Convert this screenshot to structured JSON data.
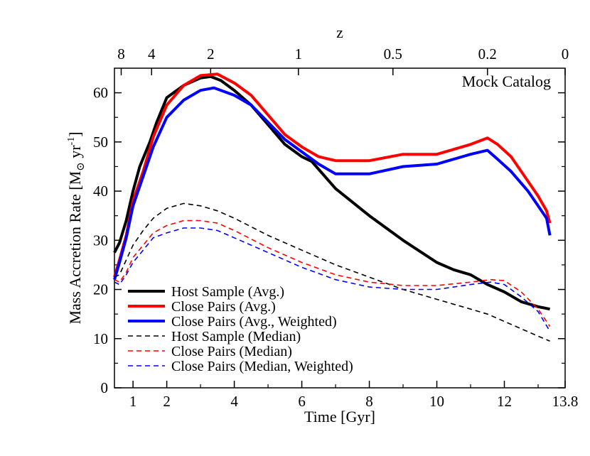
{
  "chart_data": {
    "type": "line",
    "annotation": "Mock Catalog",
    "xlabel": "Time [Gyr]",
    "ylabel": {
      "base": "Mass Accretion Rate [M",
      "sun": "⊙",
      "mid": " yr",
      "exp": "-1",
      "end": "]"
    },
    "top_xlabel": "z",
    "xlim": [
      0.45,
      13.8
    ],
    "ylim": [
      0,
      65
    ],
    "x_ticks": [
      {
        "value": 1,
        "label": "1"
      },
      {
        "value": 2,
        "label": "2"
      },
      {
        "value": 4,
        "label": "4"
      },
      {
        "value": 6,
        "label": "6"
      },
      {
        "value": 8,
        "label": "8"
      },
      {
        "value": 10,
        "label": "10"
      },
      {
        "value": 12,
        "label": "12"
      },
      {
        "value": 13.8,
        "label": "13.8"
      }
    ],
    "y_ticks": [
      {
        "value": 0,
        "label": "0"
      },
      {
        "value": 10,
        "label": "10"
      },
      {
        "value": 20,
        "label": "20"
      },
      {
        "value": 30,
        "label": "30"
      },
      {
        "value": 40,
        "label": "40"
      },
      {
        "value": 50,
        "label": "50"
      },
      {
        "value": 60,
        "label": "60"
      }
    ],
    "top_ticks": [
      {
        "time": 0.65,
        "label": "8"
      },
      {
        "time": 1.55,
        "label": "4"
      },
      {
        "time": 3.3,
        "label": "2"
      },
      {
        "time": 5.9,
        "label": "1"
      },
      {
        "time": 8.7,
        "label": "0.5"
      },
      {
        "time": 11.5,
        "label": "0.2"
      },
      {
        "time": 13.8,
        "label": "0"
      }
    ],
    "series": [
      {
        "name": "Host Sample (Avg.)",
        "color": "#000000",
        "dash": "solid",
        "x": [
          0.45,
          0.6,
          0.8,
          1.0,
          1.2,
          1.5,
          1.7,
          2.0,
          2.5,
          3.0,
          3.3,
          3.6,
          4.0,
          4.5,
          5.0,
          5.5,
          6.0,
          6.3,
          7.0,
          8.0,
          9.0,
          10.0,
          10.5,
          11.0,
          11.5,
          12.0,
          12.5,
          13.0,
          13.35
        ],
        "values": [
          27.5,
          29.5,
          34.0,
          40.0,
          45.0,
          50.0,
          54.0,
          59.0,
          61.5,
          63.0,
          63.3,
          62.5,
          60.5,
          57.5,
          53.5,
          49.5,
          47.0,
          46.0,
          40.5,
          35.0,
          30.0,
          25.5,
          24.0,
          23.0,
          21.0,
          19.5,
          17.5,
          16.5,
          16.0
        ]
      },
      {
        "name": "Close Pairs (Avg.)",
        "color": "#ff0000",
        "dash": "solid",
        "x": [
          0.45,
          0.6,
          0.8,
          1.0,
          1.3,
          1.6,
          2.0,
          2.5,
          3.0,
          3.5,
          4.0,
          4.5,
          5.0,
          5.5,
          6.0,
          6.5,
          7.0,
          8.0,
          9.0,
          10.0,
          11.0,
          11.5,
          11.8,
          12.2,
          12.7,
          13.0,
          13.25,
          13.35
        ],
        "values": [
          22.5,
          26.0,
          31.0,
          38.0,
          44.0,
          51.0,
          57.5,
          61.5,
          63.5,
          63.8,
          62.0,
          59.5,
          55.5,
          51.5,
          49.0,
          47.0,
          46.2,
          46.2,
          47.5,
          47.5,
          49.5,
          50.8,
          49.5,
          47.0,
          42.0,
          39.0,
          36.0,
          33.5
        ]
      },
      {
        "name": "Close Pairs (Avg., Weighted)",
        "color": "#0000ff",
        "dash": "solid",
        "x": [
          0.45,
          0.6,
          0.8,
          1.0,
          1.3,
          1.6,
          2.0,
          2.5,
          3.0,
          3.4,
          4.0,
          4.5,
          5.0,
          5.5,
          6.0,
          6.5,
          7.0,
          8.0,
          9.0,
          10.0,
          11.0,
          11.5,
          11.8,
          12.2,
          12.7,
          13.0,
          13.25,
          13.35
        ],
        "values": [
          22.0,
          25.5,
          30.5,
          37.0,
          43.0,
          49.0,
          55.0,
          58.5,
          60.5,
          61.0,
          59.5,
          57.5,
          54.0,
          50.5,
          48.0,
          45.5,
          43.5,
          43.5,
          45.0,
          45.5,
          47.5,
          48.3,
          46.5,
          44.0,
          40.0,
          37.0,
          34.5,
          31.0
        ]
      },
      {
        "name": "Host Sample (Median)",
        "color": "#000000",
        "dash": "dashed",
        "x": [
          0.45,
          0.6,
          0.8,
          1.0,
          1.3,
          1.6,
          2.0,
          2.5,
          3.0,
          3.5,
          4.0,
          5.0,
          6.0,
          7.0,
          8.0,
          9.0,
          10.0,
          11.0,
          11.5,
          12.0,
          12.5,
          13.0,
          13.35
        ],
        "values": [
          22.5,
          23.0,
          26.0,
          29.0,
          32.0,
          34.5,
          36.5,
          37.5,
          37.0,
          36.0,
          34.5,
          31.0,
          28.0,
          25.0,
          22.5,
          20.0,
          18.0,
          16.0,
          15.0,
          13.5,
          12.0,
          10.5,
          9.5
        ]
      },
      {
        "name": "Close Pairs (Median)",
        "color": "#ff0000",
        "dash": "dashed",
        "x": [
          0.45,
          0.6,
          0.8,
          1.0,
          1.3,
          1.6,
          2.0,
          2.5,
          3.0,
          3.5,
          4.0,
          5.0,
          6.0,
          7.0,
          8.0,
          9.0,
          10.0,
          11.0,
          11.6,
          12.0,
          12.5,
          13.0,
          13.35
        ],
        "values": [
          22.0,
          21.5,
          23.5,
          26.5,
          29.0,
          31.5,
          33.0,
          34.0,
          34.0,
          33.5,
          32.0,
          28.5,
          25.5,
          23.0,
          21.5,
          20.8,
          20.8,
          21.5,
          22.0,
          21.8,
          19.5,
          16.0,
          12.5
        ]
      },
      {
        "name": "Close Pairs (Median, Weighted)",
        "color": "#0000ff",
        "dash": "dashed",
        "x": [
          0.45,
          0.6,
          0.8,
          1.0,
          1.3,
          1.6,
          2.0,
          2.5,
          3.0,
          3.5,
          4.0,
          5.0,
          6.0,
          7.0,
          8.0,
          9.0,
          10.0,
          11.0,
          11.6,
          12.0,
          12.5,
          13.0,
          13.35
        ],
        "values": [
          21.5,
          21.0,
          23.0,
          25.5,
          28.0,
          30.5,
          31.5,
          32.5,
          32.5,
          32.0,
          30.5,
          27.5,
          24.5,
          22.0,
          20.5,
          20.0,
          20.0,
          21.0,
          21.5,
          21.0,
          18.5,
          15.5,
          11.5
        ]
      }
    ]
  }
}
